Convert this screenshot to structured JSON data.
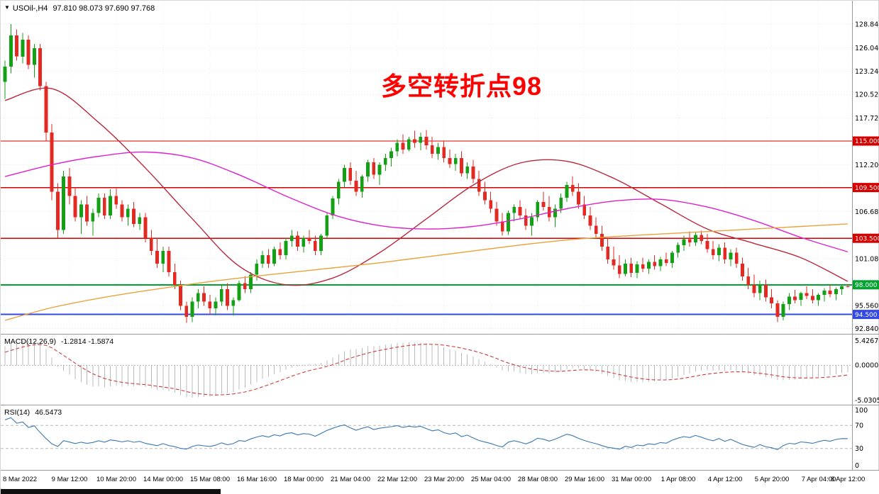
{
  "header": {
    "symbol": "USOil-,H4",
    "ohlc": "97.810 98.073 97.690 97.768"
  },
  "annotation": {
    "text": "多空转折点98",
    "color": "#FF0000"
  },
  "colors": {
    "bull": "#14A014",
    "bear": "#E22A22",
    "macd_hist": "#BBBBBB",
    "macd_signal": "#D23B3B",
    "rsi_line": "#3A78B0"
  },
  "chart_data": {
    "type": "candlestick",
    "title": "USOil- H4 chart with MACD and RSI, red annotation 多空转折点98",
    "timeframe": "H4",
    "ylim": [
      92.2,
      131.6
    ],
    "grid_labels": [
      [
        128.84,
        "128.840"
      ],
      [
        126.04,
        "126.040"
      ],
      [
        123.24,
        "123.240"
      ],
      [
        120.52,
        "120.520"
      ],
      [
        117.72,
        "117.720"
      ],
      [
        112.2,
        "112.200"
      ],
      [
        106.68,
        "106.680"
      ],
      [
        101.08,
        "101.080"
      ],
      [
        95.56,
        "95.560"
      ],
      [
        92.84,
        "92.840"
      ]
    ],
    "hlines": [
      {
        "price": 115.0,
        "label": "115.000",
        "color": "#D40000"
      },
      {
        "price": 109.5,
        "label": "109.500",
        "color": "#D40000"
      },
      {
        "price": 103.5,
        "label": "103.500",
        "color": "#D40000"
      },
      {
        "price": 98.0,
        "label": "98.000",
        "color": "#00A330"
      },
      {
        "price": 94.5,
        "label": "94.500",
        "color": "#3348E6"
      }
    ],
    "x_labels": [
      "8 Mar 2022",
      "9 Mar 12:00",
      "10 Mar 20:00",
      "14 Mar 00:00",
      "15 Mar 08:00",
      "16 Mar 16:00",
      "18 Mar 00:00",
      "21 Mar 04:00",
      "22 Mar 12:00",
      "23 Mar 20:00",
      "25 Mar 04:00",
      "28 Mar 08:00",
      "29 Mar 16:00",
      "31 Mar 00:00",
      "1 Apr 08:00",
      "4 Apr 12:00",
      "5 Apr 20:00",
      "7 Apr 04:00",
      "8 Apr 12:00"
    ],
    "label_step": 8,
    "label_first_offset": 3,
    "pre_closes": [
      112,
      113.5,
      112.5,
      114,
      115.5,
      114.5,
      116,
      117.5,
      116.5,
      118,
      119.5,
      118.5,
      120,
      122,
      123
    ],
    "candles": [
      [
        122.0,
        124.5,
        120.0,
        123.8
      ],
      [
        123.8,
        128.84,
        123.0,
        127.5
      ],
      [
        127.5,
        128.2,
        124.5,
        125.0
      ],
      [
        125.0,
        127.8,
        124.2,
        127.0
      ],
      [
        127.0,
        127.5,
        123.5,
        124.0
      ],
      [
        124.0,
        126.5,
        122.5,
        126.0
      ],
      [
        126.0,
        126.5,
        121.0,
        121.5
      ],
      [
        121.5,
        122.0,
        115.0,
        116.0
      ],
      [
        116.0,
        117.0,
        108.0,
        109.0
      ],
      [
        109.0,
        110.0,
        103.5,
        104.5
      ],
      [
        104.5,
        111.5,
        104.0,
        110.8
      ],
      [
        110.8,
        111.8,
        107.5,
        108.5
      ],
      [
        108.5,
        109.5,
        105.5,
        106.0
      ],
      [
        106.0,
        108.0,
        104.0,
        107.5
      ],
      [
        107.5,
        108.5,
        105.0,
        105.5
      ],
      [
        105.5,
        107.0,
        103.8,
        106.5
      ],
      [
        106.5,
        108.8,
        106.0,
        108.3
      ],
      [
        108.3,
        108.8,
        105.8,
        106.2
      ],
      [
        106.2,
        109.3,
        105.8,
        108.5
      ],
      [
        108.5,
        109.4,
        107.0,
        107.5
      ],
      [
        107.5,
        108.0,
        105.5,
        106.0
      ],
      [
        106.0,
        107.5,
        105.0,
        107.0
      ],
      [
        107.0,
        107.8,
        104.8,
        105.2
      ],
      [
        105.2,
        106.5,
        104.5,
        106.0
      ],
      [
        106.0,
        106.5,
        103.0,
        103.5
      ],
      [
        103.5,
        104.5,
        101.5,
        102.0
      ],
      [
        102.0,
        103.5,
        100.0,
        100.5
      ],
      [
        100.5,
        102.5,
        99.5,
        102.0
      ],
      [
        102.0,
        102.5,
        99.0,
        99.5
      ],
      [
        99.5,
        100.5,
        97.5,
        98.0
      ],
      [
        98.0,
        98.5,
        95.0,
        95.5
      ],
      [
        95.5,
        96.0,
        93.5,
        94.2
      ],
      [
        94.2,
        96.5,
        93.6,
        96.0
      ],
      [
        96.0,
        97.5,
        95.2,
        97.0
      ],
      [
        97.0,
        97.8,
        95.5,
        96.0
      ],
      [
        96.0,
        96.8,
        94.5,
        95.2
      ],
      [
        95.2,
        96.5,
        94.4,
        96.0
      ],
      [
        96.0,
        98.0,
        95.5,
        97.5
      ],
      [
        97.5,
        98.2,
        95.0,
        95.5
      ],
      [
        95.5,
        96.5,
        94.4,
        96.2
      ],
      [
        96.2,
        98.5,
        96.0,
        98.2
      ],
      [
        98.2,
        99.0,
        97.0,
        97.5
      ],
      [
        97.5,
        99.5,
        97.0,
        99.2
      ],
      [
        99.2,
        101.0,
        98.5,
        100.5
      ],
      [
        100.5,
        102.0,
        100.0,
        101.5
      ],
      [
        101.5,
        102.2,
        100.0,
        100.5
      ],
      [
        100.5,
        102.5,
        100.2,
        102.2
      ],
      [
        102.2,
        103.0,
        101.0,
        101.5
      ],
      [
        101.5,
        103.5,
        101.0,
        103.2
      ],
      [
        103.2,
        104.5,
        102.5,
        103.8
      ],
      [
        103.8,
        104.3,
        102.0,
        102.5
      ],
      [
        102.5,
        103.8,
        101.8,
        103.5
      ],
      [
        103.5,
        104.5,
        102.8,
        103.2
      ],
      [
        103.2,
        103.8,
        101.5,
        102.0
      ],
      [
        102.0,
        104.0,
        101.5,
        103.8
      ],
      [
        103.8,
        106.5,
        103.5,
        106.2
      ],
      [
        106.2,
        108.5,
        105.8,
        108.2
      ],
      [
        108.2,
        110.5,
        107.5,
        110.2
      ],
      [
        110.2,
        112.2,
        109.5,
        111.8
      ],
      [
        111.8,
        112.5,
        109.8,
        110.3
      ],
      [
        110.3,
        111.5,
        108.5,
        109.0
      ],
      [
        109.0,
        111.0,
        108.3,
        110.8
      ],
      [
        110.8,
        112.8,
        110.2,
        112.5
      ],
      [
        112.5,
        113.0,
        110.5,
        111.0
      ],
      [
        111.0,
        112.5,
        109.8,
        112.2
      ],
      [
        112.2,
        113.5,
        111.5,
        113.0
      ],
      [
        113.0,
        114.2,
        112.0,
        113.8
      ],
      [
        113.8,
        115.2,
        113.2,
        114.8
      ],
      [
        114.8,
        115.8,
        113.5,
        114.0
      ],
      [
        114.0,
        115.5,
        113.8,
        115.2
      ],
      [
        115.2,
        116.2,
        114.2,
        114.8
      ],
      [
        114.8,
        116.0,
        113.9,
        115.5
      ],
      [
        115.5,
        116.3,
        114.0,
        114.5
      ],
      [
        114.5,
        115.5,
        113.0,
        113.5
      ],
      [
        113.5,
        114.8,
        112.8,
        114.3
      ],
      [
        114.3,
        115.0,
        112.5,
        113.0
      ],
      [
        113.0,
        114.0,
        111.8,
        112.3
      ],
      [
        112.3,
        113.5,
        111.5,
        113.0
      ],
      [
        113.0,
        113.8,
        110.8,
        111.2
      ],
      [
        111.2,
        112.5,
        110.5,
        112.0
      ],
      [
        112.0,
        112.8,
        110.0,
        110.5
      ],
      [
        110.5,
        111.5,
        108.5,
        109.0
      ],
      [
        109.0,
        110.2,
        107.5,
        108.0
      ],
      [
        108.0,
        109.0,
        106.5,
        107.0
      ],
      [
        107.0,
        107.8,
        105.0,
        105.5
      ],
      [
        105.5,
        106.5,
        103.8,
        104.3
      ],
      [
        104.3,
        106.8,
        103.9,
        106.5
      ],
      [
        106.5,
        107.5,
        105.5,
        107.2
      ],
      [
        107.2,
        108.0,
        105.8,
        106.2
      ],
      [
        106.2,
        107.0,
        104.5,
        105.0
      ],
      [
        105.0,
        106.5,
        103.8,
        106.0
      ],
      [
        106.0,
        108.0,
        105.5,
        107.8
      ],
      [
        107.8,
        109.0,
        106.8,
        107.2
      ],
      [
        107.2,
        108.5,
        105.5,
        106.0
      ],
      [
        106.0,
        107.5,
        104.8,
        107.0
      ],
      [
        107.0,
        108.8,
        106.5,
        108.3
      ],
      [
        108.3,
        110.2,
        107.8,
        109.8
      ],
      [
        109.8,
        110.8,
        108.5,
        109.0
      ],
      [
        109.0,
        110.0,
        107.0,
        107.5
      ],
      [
        107.5,
        108.5,
        105.8,
        106.2
      ],
      [
        106.2,
        107.2,
        104.5,
        105.0
      ],
      [
        105.0,
        106.0,
        103.5,
        104.0
      ],
      [
        104.0,
        105.0,
        102.0,
        102.5
      ],
      [
        102.5,
        103.5,
        100.5,
        101.0
      ],
      [
        101.0,
        102.5,
        99.8,
        100.3
      ],
      [
        100.3,
        101.5,
        98.8,
        99.3
      ],
      [
        99.3,
        101.0,
        99.0,
        100.5
      ],
      [
        100.5,
        101.2,
        98.9,
        99.4
      ],
      [
        99.4,
        100.8,
        98.8,
        100.4
      ],
      [
        100.4,
        101.2,
        99.5,
        99.9
      ],
      [
        99.9,
        101.0,
        99.3,
        100.7
      ],
      [
        100.7,
        101.5,
        99.8,
        100.2
      ],
      [
        100.2,
        101.3,
        99.6,
        101.0
      ],
      [
        101.0,
        101.8,
        100.2,
        100.6
      ],
      [
        100.6,
        102.0,
        100.0,
        101.8
      ],
      [
        101.8,
        103.0,
        101.2,
        102.7
      ],
      [
        102.7,
        103.8,
        102.0,
        103.4
      ],
      [
        103.4,
        104.3,
        102.5,
        103.0
      ],
      [
        103.0,
        104.2,
        102.6,
        103.9
      ],
      [
        103.9,
        104.4,
        102.8,
        103.2
      ],
      [
        103.2,
        104.0,
        101.8,
        102.2
      ],
      [
        102.2,
        103.2,
        101.0,
        101.5
      ],
      [
        101.5,
        102.8,
        100.8,
        102.4
      ],
      [
        102.4,
        103.0,
        100.5,
        101.0
      ],
      [
        101.0,
        102.2,
        100.2,
        101.8
      ],
      [
        101.8,
        102.4,
        100.0,
        100.5
      ],
      [
        100.5,
        101.2,
        98.5,
        99.0
      ],
      [
        99.0,
        100.0,
        97.5,
        98.0
      ],
      [
        98.0,
        99.2,
        96.5,
        97.0
      ],
      [
        97.0,
        98.5,
        96.2,
        98.0
      ],
      [
        98.0,
        98.6,
        96.0,
        96.5
      ],
      [
        96.5,
        97.5,
        95.2,
        95.8
      ],
      [
        95.8,
        96.2,
        93.6,
        94.2
      ],
      [
        94.2,
        96.0,
        93.8,
        95.7
      ],
      [
        95.7,
        97.0,
        95.0,
        96.6
      ],
      [
        96.6,
        97.4,
        95.8,
        96.2
      ],
      [
        96.2,
        97.2,
        95.5,
        97.0
      ],
      [
        97.0,
        97.8,
        96.3,
        96.7
      ],
      [
        96.7,
        97.5,
        95.8,
        96.2
      ],
      [
        96.2,
        97.0,
        95.5,
        96.8
      ],
      [
        96.8,
        97.6,
        96.0,
        97.3
      ],
      [
        97.3,
        98.0,
        96.5,
        96.9
      ],
      [
        96.9,
        97.7,
        96.2,
        97.5
      ],
      [
        97.5,
        98.07,
        96.8,
        97.81
      ],
      [
        97.81,
        98.073,
        97.69,
        97.768
      ]
    ],
    "ma_lines": [
      {
        "name": "ma-fast-red-line",
        "color": "#B8293D",
        "values": [
          119.8,
          121.2,
          117.2,
          111.8,
          105.8,
          100.2,
          98.0,
          98.8,
          101.8,
          105.8,
          109.8,
          112.4,
          112.6,
          110.6,
          107.6,
          104.6,
          102.9,
          101.2,
          98.4
        ]
      },
      {
        "name": "ma-mid-magenta-line",
        "color": "#DD22CC",
        "values": [
          110.8,
          112.2,
          113.2,
          113.7,
          113.0,
          111.0,
          108.5,
          106.3,
          105.0,
          104.6,
          104.9,
          105.8,
          107.0,
          107.9,
          108.1,
          107.2,
          105.6,
          103.6,
          101.9
        ]
      },
      {
        "name": "ma-slow-orange-line",
        "color": "#E8A33D",
        "values": [
          93.8,
          95.3,
          96.4,
          97.3,
          98.1,
          98.8,
          99.4,
          100.0,
          100.6,
          101.3,
          102.0,
          102.7,
          103.3,
          103.7,
          104.0,
          104.3,
          104.6,
          104.9,
          105.2
        ]
      }
    ],
    "macd": {
      "label": "MACD(12,26,9)",
      "fast": 12,
      "slow": 26,
      "signal": 9,
      "values_text": "-1.2814 -1.5874",
      "axis_labels": [
        "5.4267",
        "0.0000",
        "-5.0305"
      ]
    },
    "rsi": {
      "label": "RSI(14)",
      "period": 14,
      "value_text": "46.5473",
      "axis_labels": [
        "100",
        "70",
        "30",
        "0"
      ],
      "levels": [
        70,
        30
      ]
    }
  }
}
